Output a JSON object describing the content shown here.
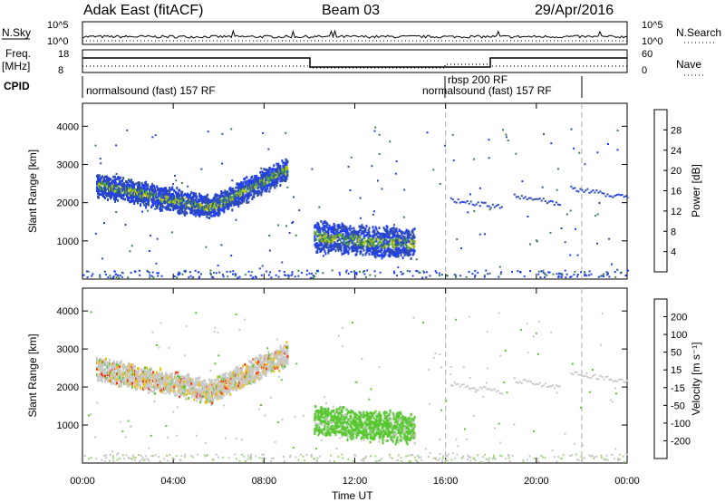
{
  "header": {
    "station": "Adak East (fitACF)",
    "beam": "Beam 03",
    "date": "29/Apr/2016"
  },
  "status_panels": {
    "nsky_label": "N.Sky",
    "nsearch_label": "N.Search",
    "nsky_ticks": [
      "10^5",
      "10^0"
    ],
    "nsearch_ticks": [
      "10^5",
      "10^0"
    ],
    "freq_label": "Freq.",
    "freq_unit": "[MHz]",
    "freq_ticks": [
      18,
      8
    ],
    "nave_label": "Nave",
    "nave_ticks": [
      60,
      0
    ],
    "cpid_label": "CPID",
    "cpid_entries": [
      "normalsound (fast) 157 RF",
      "rbsp 200 RF",
      "normalsound (fast) 157 RF"
    ]
  },
  "chart_data": [
    {
      "type": "heatmap",
      "name": "power",
      "ylabel": "Slant Range [km]",
      "xlabel": "Time UT",
      "xlim": [
        0,
        24
      ],
      "ylim": [
        0,
        4600
      ],
      "x_ticks": [
        "00:00",
        "04:00",
        "08:00",
        "12:00",
        "16:00",
        "20:00",
        "00:00"
      ],
      "y_ticks": [
        1000,
        2000,
        3000,
        4000
      ],
      "colorbar": {
        "label": "Power [dB]",
        "ticks": [
          4,
          8,
          12,
          16,
          20,
          24,
          28
        ],
        "colors": [
          "#1e3cff",
          "#2e4da6",
          "#3a8050",
          "#56b23a",
          "#c8c800",
          "#f0a000",
          "#ff6000",
          "#ff0000"
        ]
      },
      "scatter_bands": [
        {
          "t0": 0.6,
          "t1": 9.0,
          "range_center_start": 2500,
          "range_center_mid": 1900,
          "range_center_end": 2900,
          "width_km": 350,
          "peak_db": 16
        },
        {
          "t0": 10.2,
          "t1": 14.6,
          "range_center_start": 1150,
          "range_center_mid": 1000,
          "range_center_end": 950,
          "width_km": 450,
          "peak_db": 18
        }
      ]
    },
    {
      "type": "heatmap",
      "name": "velocity",
      "ylabel": "Slant Range [km]",
      "xlabel": "Time UT",
      "xlim": [
        0,
        24
      ],
      "ylim": [
        0,
        4600
      ],
      "x_ticks": [
        "00:00",
        "04:00",
        "08:00",
        "12:00",
        "16:00",
        "20:00",
        "00:00"
      ],
      "y_ticks": [
        1000,
        2000,
        3000,
        4000
      ],
      "colorbar": {
        "label": "Velocity [m s⁻¹]",
        "ticks": [
          200,
          100,
          50,
          15,
          -15,
          -50,
          -100,
          -200
        ],
        "colors": [
          "#2030c0",
          "#2e4da6",
          "#3a8050",
          "#58c830",
          "#c8c8c8",
          "#f0c000",
          "#f08000",
          "#ff3000",
          "#ff0000"
        ]
      },
      "dominant_bands": [
        {
          "t0": 0.6,
          "t1": 9.0,
          "dominant_velocity": "gray (-15 to 15)"
        },
        {
          "t0": 10.2,
          "t1": 14.6,
          "dominant_velocity": "green (15 to 50)"
        }
      ]
    }
  ],
  "axis": {
    "time_label": "Time UT"
  }
}
